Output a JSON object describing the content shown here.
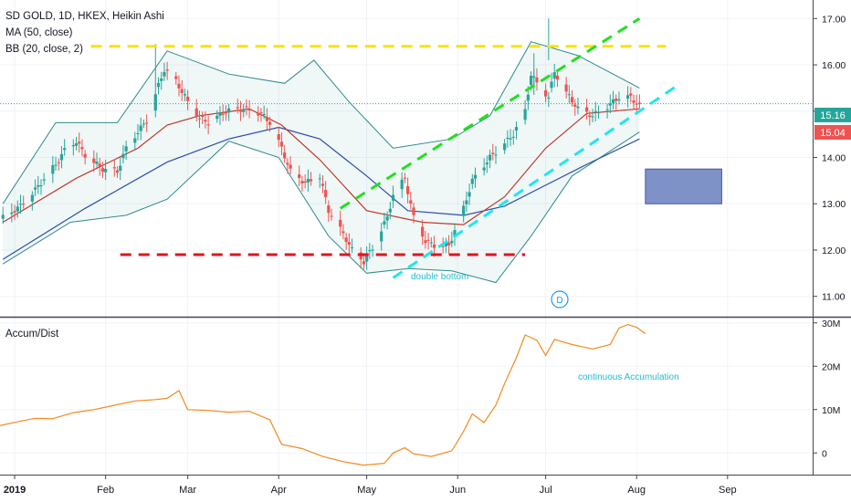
{
  "header": {
    "symbol_line": "SD GOLD, 1D, HKEX, Heikin Ashi",
    "ma_label": "MA (50, close)",
    "bb_label": "BB (20, close, 2)",
    "ad_label": "Accum/Dist"
  },
  "annotations": {
    "double_bottom": "double bottom",
    "continuous_accumulation": "continuous Accumulation",
    "dividend_marker": "D"
  },
  "price_badges": {
    "last": "15.16",
    "ma": "15.04"
  },
  "x_axis_ticks": [
    "2019",
    "Feb",
    "Mar",
    "Apr",
    "May",
    "Jun",
    "Jul",
    "Aug",
    "Sep"
  ],
  "colors": {
    "up": "#26a69a",
    "down": "#ef5350",
    "ma_short": "#c0392b",
    "ma_long": "#2b4ea8",
    "bb": "#2e8b8b",
    "yellow_line": "#f2e600",
    "red_line": "#e0141e",
    "green_line": "#22e01e",
    "cyan_line": "#22e4f0",
    "box_fill": "#7f92c8",
    "ad_line": "#f28a1e",
    "badge_last": "#26a69a",
    "badge_ma": "#ef5350"
  },
  "chart_data": [
    {
      "type": "candlestick",
      "title": "SD GOLD, 1D, HKEX, Heikin Ashi",
      "x_range": [
        "2018-12-27",
        "2019-09-30"
      ],
      "ylim": [
        10.6,
        17.4
      ],
      "y_ticks": [
        "11.00",
        "12.00",
        "13.00",
        "14.00",
        "15.00",
        "16.00",
        "17.00"
      ],
      "x_ticks": [
        "2019",
        "Feb",
        "Mar",
        "Apr",
        "May",
        "Jun",
        "Jul",
        "Aug",
        "Sep"
      ],
      "legend": [
        "MA (50, close)",
        "BB (20, close, 2)"
      ],
      "close_path": [
        [
          "2018-12-28",
          12.7
        ],
        [
          "2019-01-03",
          12.95
        ],
        [
          "2019-01-08",
          13.3
        ],
        [
          "2019-01-15",
          13.85
        ],
        [
          "2019-01-18",
          14.15
        ],
        [
          "2019-01-22",
          14.35
        ],
        [
          "2019-01-25",
          14.05
        ],
        [
          "2019-01-31",
          13.75
        ],
        [
          "2019-02-05",
          13.7
        ],
        [
          "2019-02-08",
          14.2
        ],
        [
          "2019-02-12",
          14.55
        ],
        [
          "2019-02-15",
          14.8
        ],
        [
          "2019-02-19",
          15.55
        ],
        [
          "2019-02-21",
          15.9
        ],
        [
          "2019-02-25",
          15.65
        ],
        [
          "2019-03-01",
          15.2
        ],
        [
          "2019-03-05",
          14.85
        ],
        [
          "2019-03-08",
          14.75
        ],
        [
          "2019-03-14",
          15.0
        ],
        [
          "2019-03-20",
          15.05
        ],
        [
          "2019-03-26",
          14.95
        ],
        [
          "2019-03-29",
          14.75
        ],
        [
          "2019-04-02",
          14.2
        ],
        [
          "2019-04-05",
          13.7
        ],
        [
          "2019-04-10",
          13.45
        ],
        [
          "2019-04-15",
          13.6
        ],
        [
          "2019-04-18",
          12.85
        ],
        [
          "2019-04-23",
          12.35
        ],
        [
          "2019-04-26",
          12.0
        ],
        [
          "2019-04-30",
          11.75
        ],
        [
          "2019-05-03",
          12.05
        ],
        [
          "2019-05-08",
          12.7
        ],
        [
          "2019-05-10",
          13.2
        ],
        [
          "2019-05-14",
          13.55
        ],
        [
          "2019-05-17",
          12.7
        ],
        [
          "2019-05-21",
          12.2
        ],
        [
          "2019-05-24",
          12.1
        ],
        [
          "2019-05-29",
          12.1
        ],
        [
          "2019-06-03",
          12.9
        ],
        [
          "2019-06-06",
          13.5
        ],
        [
          "2019-06-12",
          14.0
        ],
        [
          "2019-06-17",
          14.3
        ],
        [
          "2019-06-20",
          14.5
        ],
        [
          "2019-06-24",
          15.0
        ],
        [
          "2019-06-26",
          15.8
        ],
        [
          "2019-06-28",
          15.6
        ],
        [
          "2019-07-02",
          15.3
        ],
        [
          "2019-07-04",
          15.85
        ],
        [
          "2019-07-08",
          15.4
        ],
        [
          "2019-07-12",
          15.05
        ],
        [
          "2019-07-17",
          14.9
        ],
        [
          "2019-07-22",
          15.1
        ],
        [
          "2019-07-26",
          15.3
        ],
        [
          "2019-07-30",
          15.3
        ],
        [
          "2019-08-02",
          15.1
        ]
      ],
      "ma_short_path": [
        [
          "2018-12-28",
          12.6
        ],
        [
          "2019-01-22",
          13.55
        ],
        [
          "2019-02-12",
          14.2
        ],
        [
          "2019-02-22",
          14.7
        ],
        [
          "2019-03-05",
          14.9
        ],
        [
          "2019-03-22",
          15.05
        ],
        [
          "2019-04-02",
          14.7
        ],
        [
          "2019-04-15",
          13.95
        ],
        [
          "2019-05-01",
          12.85
        ],
        [
          "2019-05-20",
          12.6
        ],
        [
          "2019-06-03",
          12.55
        ],
        [
          "2019-06-17",
          13.15
        ],
        [
          "2019-07-01",
          14.2
        ],
        [
          "2019-07-15",
          14.95
        ],
        [
          "2019-08-02",
          15.05
        ]
      ],
      "ma_long_path": [
        [
          "2018-12-28",
          11.8
        ],
        [
          "2019-01-25",
          12.9
        ],
        [
          "2019-02-22",
          13.9
        ],
        [
          "2019-03-15",
          14.4
        ],
        [
          "2019-04-01",
          14.65
        ],
        [
          "2019-04-15",
          14.4
        ],
        [
          "2019-05-01",
          13.6
        ],
        [
          "2019-05-15",
          12.85
        ],
        [
          "2019-06-03",
          12.75
        ],
        [
          "2019-06-17",
          12.95
        ],
        [
          "2019-07-01",
          13.4
        ],
        [
          "2019-07-15",
          13.85
        ],
        [
          "2019-08-02",
          14.4
        ]
      ],
      "bb_upper_path": [
        [
          "2018-12-28",
          13.0
        ],
        [
          "2019-01-15",
          14.75
        ],
        [
          "2019-02-05",
          14.75
        ],
        [
          "2019-02-22",
          16.3
        ],
        [
          "2019-03-15",
          15.8
        ],
        [
          "2019-04-03",
          15.6
        ],
        [
          "2019-04-13",
          16.1
        ],
        [
          "2019-04-25",
          15.2
        ],
        [
          "2019-05-10",
          14.2
        ],
        [
          "2019-05-30",
          14.4
        ],
        [
          "2019-06-12",
          14.9
        ],
        [
          "2019-06-26",
          16.5
        ],
        [
          "2019-07-12",
          16.2
        ],
        [
          "2019-08-02",
          15.5
        ]
      ],
      "bb_lower_path": [
        [
          "2018-12-28",
          11.7
        ],
        [
          "2019-01-20",
          12.6
        ],
        [
          "2019-02-08",
          12.75
        ],
        [
          "2019-02-22",
          13.1
        ],
        [
          "2019-03-15",
          14.35
        ],
        [
          "2019-04-01",
          14.0
        ],
        [
          "2019-04-18",
          12.3
        ],
        [
          "2019-05-01",
          11.5
        ],
        [
          "2019-05-15",
          11.6
        ],
        [
          "2019-05-30",
          11.55
        ],
        [
          "2019-06-14",
          11.3
        ],
        [
          "2019-06-26",
          12.3
        ],
        [
          "2019-07-10",
          13.6
        ],
        [
          "2019-08-02",
          14.55
        ]
      ],
      "drawings": {
        "yellow_resistance": {
          "x": [
            "2019-01-27",
            "2019-08-11"
          ],
          "y": [
            16.4,
            16.4
          ]
        },
        "red_support": {
          "x": [
            "2019-02-06",
            "2019-06-24"
          ],
          "y": [
            11.9,
            11.9
          ]
        },
        "green_channel": {
          "x": [
            "2019-04-22",
            "2019-08-02"
          ],
          "y": [
            12.9,
            17.0
          ]
        },
        "cyan_channel": {
          "x": [
            "2019-05-10",
            "2019-08-16"
          ],
          "y": [
            11.4,
            15.6
          ]
        },
        "target_box": {
          "x": [
            "2019-08-04",
            "2019-08-30"
          ],
          "y": [
            13.0,
            13.75
          ]
        }
      }
    },
    {
      "type": "line",
      "title": "Accum/Dist",
      "x_range": [
        "2018-12-27",
        "2019-09-30"
      ],
      "ylim": [
        -5,
        31
      ],
      "y_ticks": [
        "0",
        "10M",
        "20M",
        "30M"
      ],
      "unit": "millions",
      "series": [
        {
          "name": "Accum/Dist",
          "points": [
            [
              "2018-12-27",
              6.3
            ],
            [
              "2019-01-02",
              7.2
            ],
            [
              "2019-01-08",
              8.0
            ],
            [
              "2019-01-14",
              7.9
            ],
            [
              "2019-01-21",
              9.3
            ],
            [
              "2019-01-28",
              10.0
            ],
            [
              "2019-02-04",
              11.0
            ],
            [
              "2019-02-11",
              12.0
            ],
            [
              "2019-02-18",
              12.3
            ],
            [
              "2019-02-22",
              12.6
            ],
            [
              "2019-02-26",
              14.4
            ],
            [
              "2019-03-01",
              10.0
            ],
            [
              "2019-03-08",
              9.8
            ],
            [
              "2019-03-15",
              9.4
            ],
            [
              "2019-03-22",
              9.6
            ],
            [
              "2019-03-29",
              7.6
            ],
            [
              "2019-04-02",
              2.0
            ],
            [
              "2019-04-09",
              1.0
            ],
            [
              "2019-04-16",
              -0.8
            ],
            [
              "2019-04-23",
              -2.0
            ],
            [
              "2019-04-30",
              -2.8
            ],
            [
              "2019-05-07",
              -2.4
            ],
            [
              "2019-05-10",
              0.0
            ],
            [
              "2019-05-14",
              1.2
            ],
            [
              "2019-05-17",
              -0.2
            ],
            [
              "2019-05-23",
              -0.8
            ],
            [
              "2019-05-30",
              0.5
            ],
            [
              "2019-06-03",
              5.0
            ],
            [
              "2019-06-06",
              9.0
            ],
            [
              "2019-06-10",
              7.0
            ],
            [
              "2019-06-14",
              11.0
            ],
            [
              "2019-06-17",
              16.0
            ],
            [
              "2019-06-21",
              22.0
            ],
            [
              "2019-06-24",
              27.2
            ],
            [
              "2019-06-28",
              26.0
            ],
            [
              "2019-07-01",
              22.5
            ],
            [
              "2019-07-04",
              26.2
            ],
            [
              "2019-07-10",
              25.0
            ],
            [
              "2019-07-17",
              24.0
            ],
            [
              "2019-07-23",
              25.0
            ],
            [
              "2019-07-26",
              28.8
            ],
            [
              "2019-07-29",
              29.6
            ],
            [
              "2019-08-01",
              29.0
            ],
            [
              "2019-08-04",
              27.5
            ]
          ]
        }
      ]
    }
  ]
}
